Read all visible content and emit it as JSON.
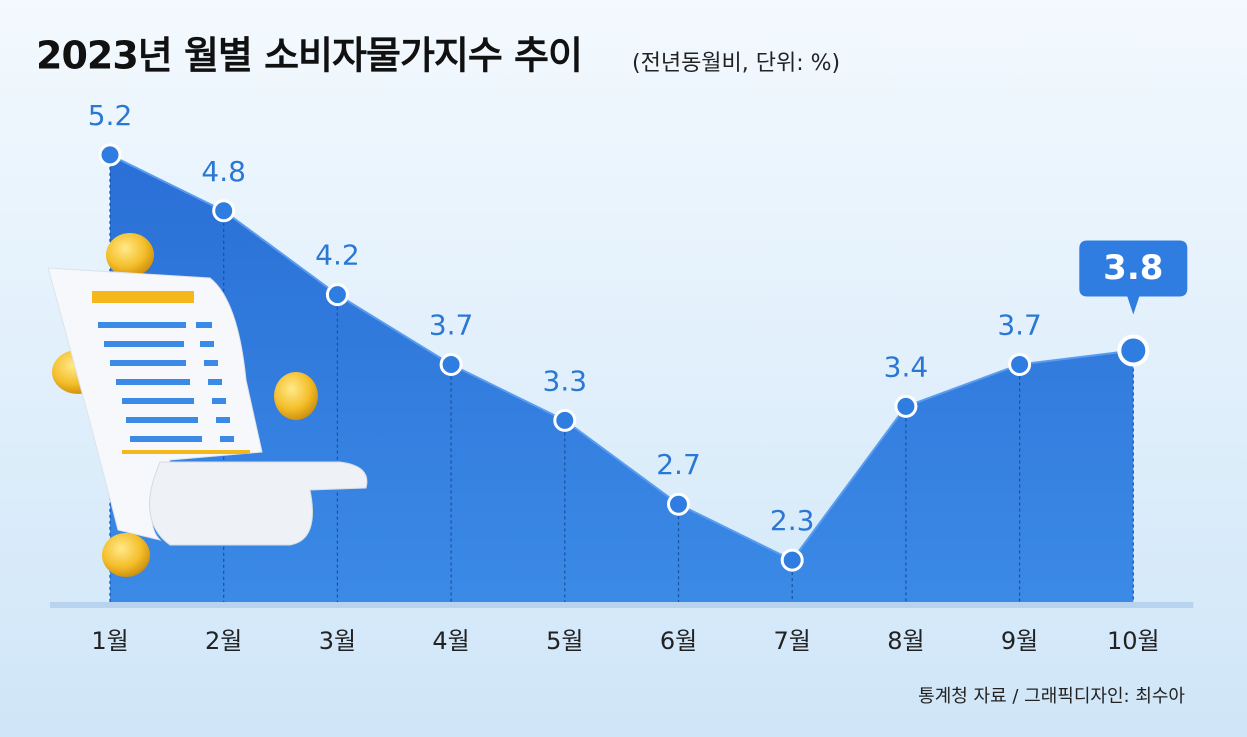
{
  "chart_data": {
    "type": "area",
    "title": "2023년 월별 소비자물가지수 추이",
    "subtitle": "(전년동월비, 단위: %)",
    "source": "통계청 자료 / 그래픽디자인: 최수아",
    "categories": [
      "1월",
      "2월",
      "3월",
      "4월",
      "5월",
      "6월",
      "7월",
      "8월",
      "9월",
      "10월"
    ],
    "values": [
      5.2,
      4.8,
      4.2,
      3.7,
      3.3,
      2.7,
      2.3,
      3.4,
      3.7,
      3.8
    ],
    "color": "#2f7de0",
    "ylim": [
      2,
      5.5
    ]
  }
}
